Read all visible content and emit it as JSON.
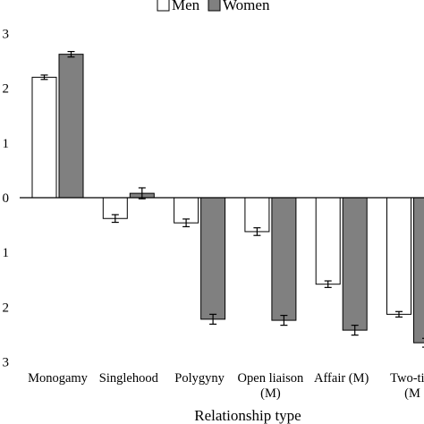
{
  "chart_data": {
    "type": "bar",
    "title": "",
    "xlabel": "Relationship type",
    "ylabel": "",
    "ylim": [
      -3,
      3
    ],
    "yticks": [
      3,
      2,
      1,
      0,
      1,
      2,
      3
    ],
    "grid": false,
    "legend_placement": "top",
    "categories": [
      [
        "Monogamy"
      ],
      [
        "Singlehood"
      ],
      [
        "Polygyny"
      ],
      [
        "Open liaison",
        "(M)"
      ],
      [
        "Affair (M)"
      ],
      [
        "Two-tim",
        "(M"
      ]
    ],
    "series": [
      {
        "name": "Men",
        "color": "#ffffff",
        "values": [
          2.2,
          -0.38,
          -0.46,
          -0.62,
          -1.58,
          -2.13
        ],
        "errors": [
          0.04,
          0.07,
          0.07,
          0.07,
          0.06,
          0.05
        ]
      },
      {
        "name": "Women",
        "color": "#808080",
        "values": [
          2.62,
          0.08,
          -2.22,
          -2.24,
          -2.42,
          -2.65
        ],
        "errors": [
          0.05,
          0.1,
          0.09,
          0.09,
          0.09,
          0.08
        ]
      }
    ]
  }
}
